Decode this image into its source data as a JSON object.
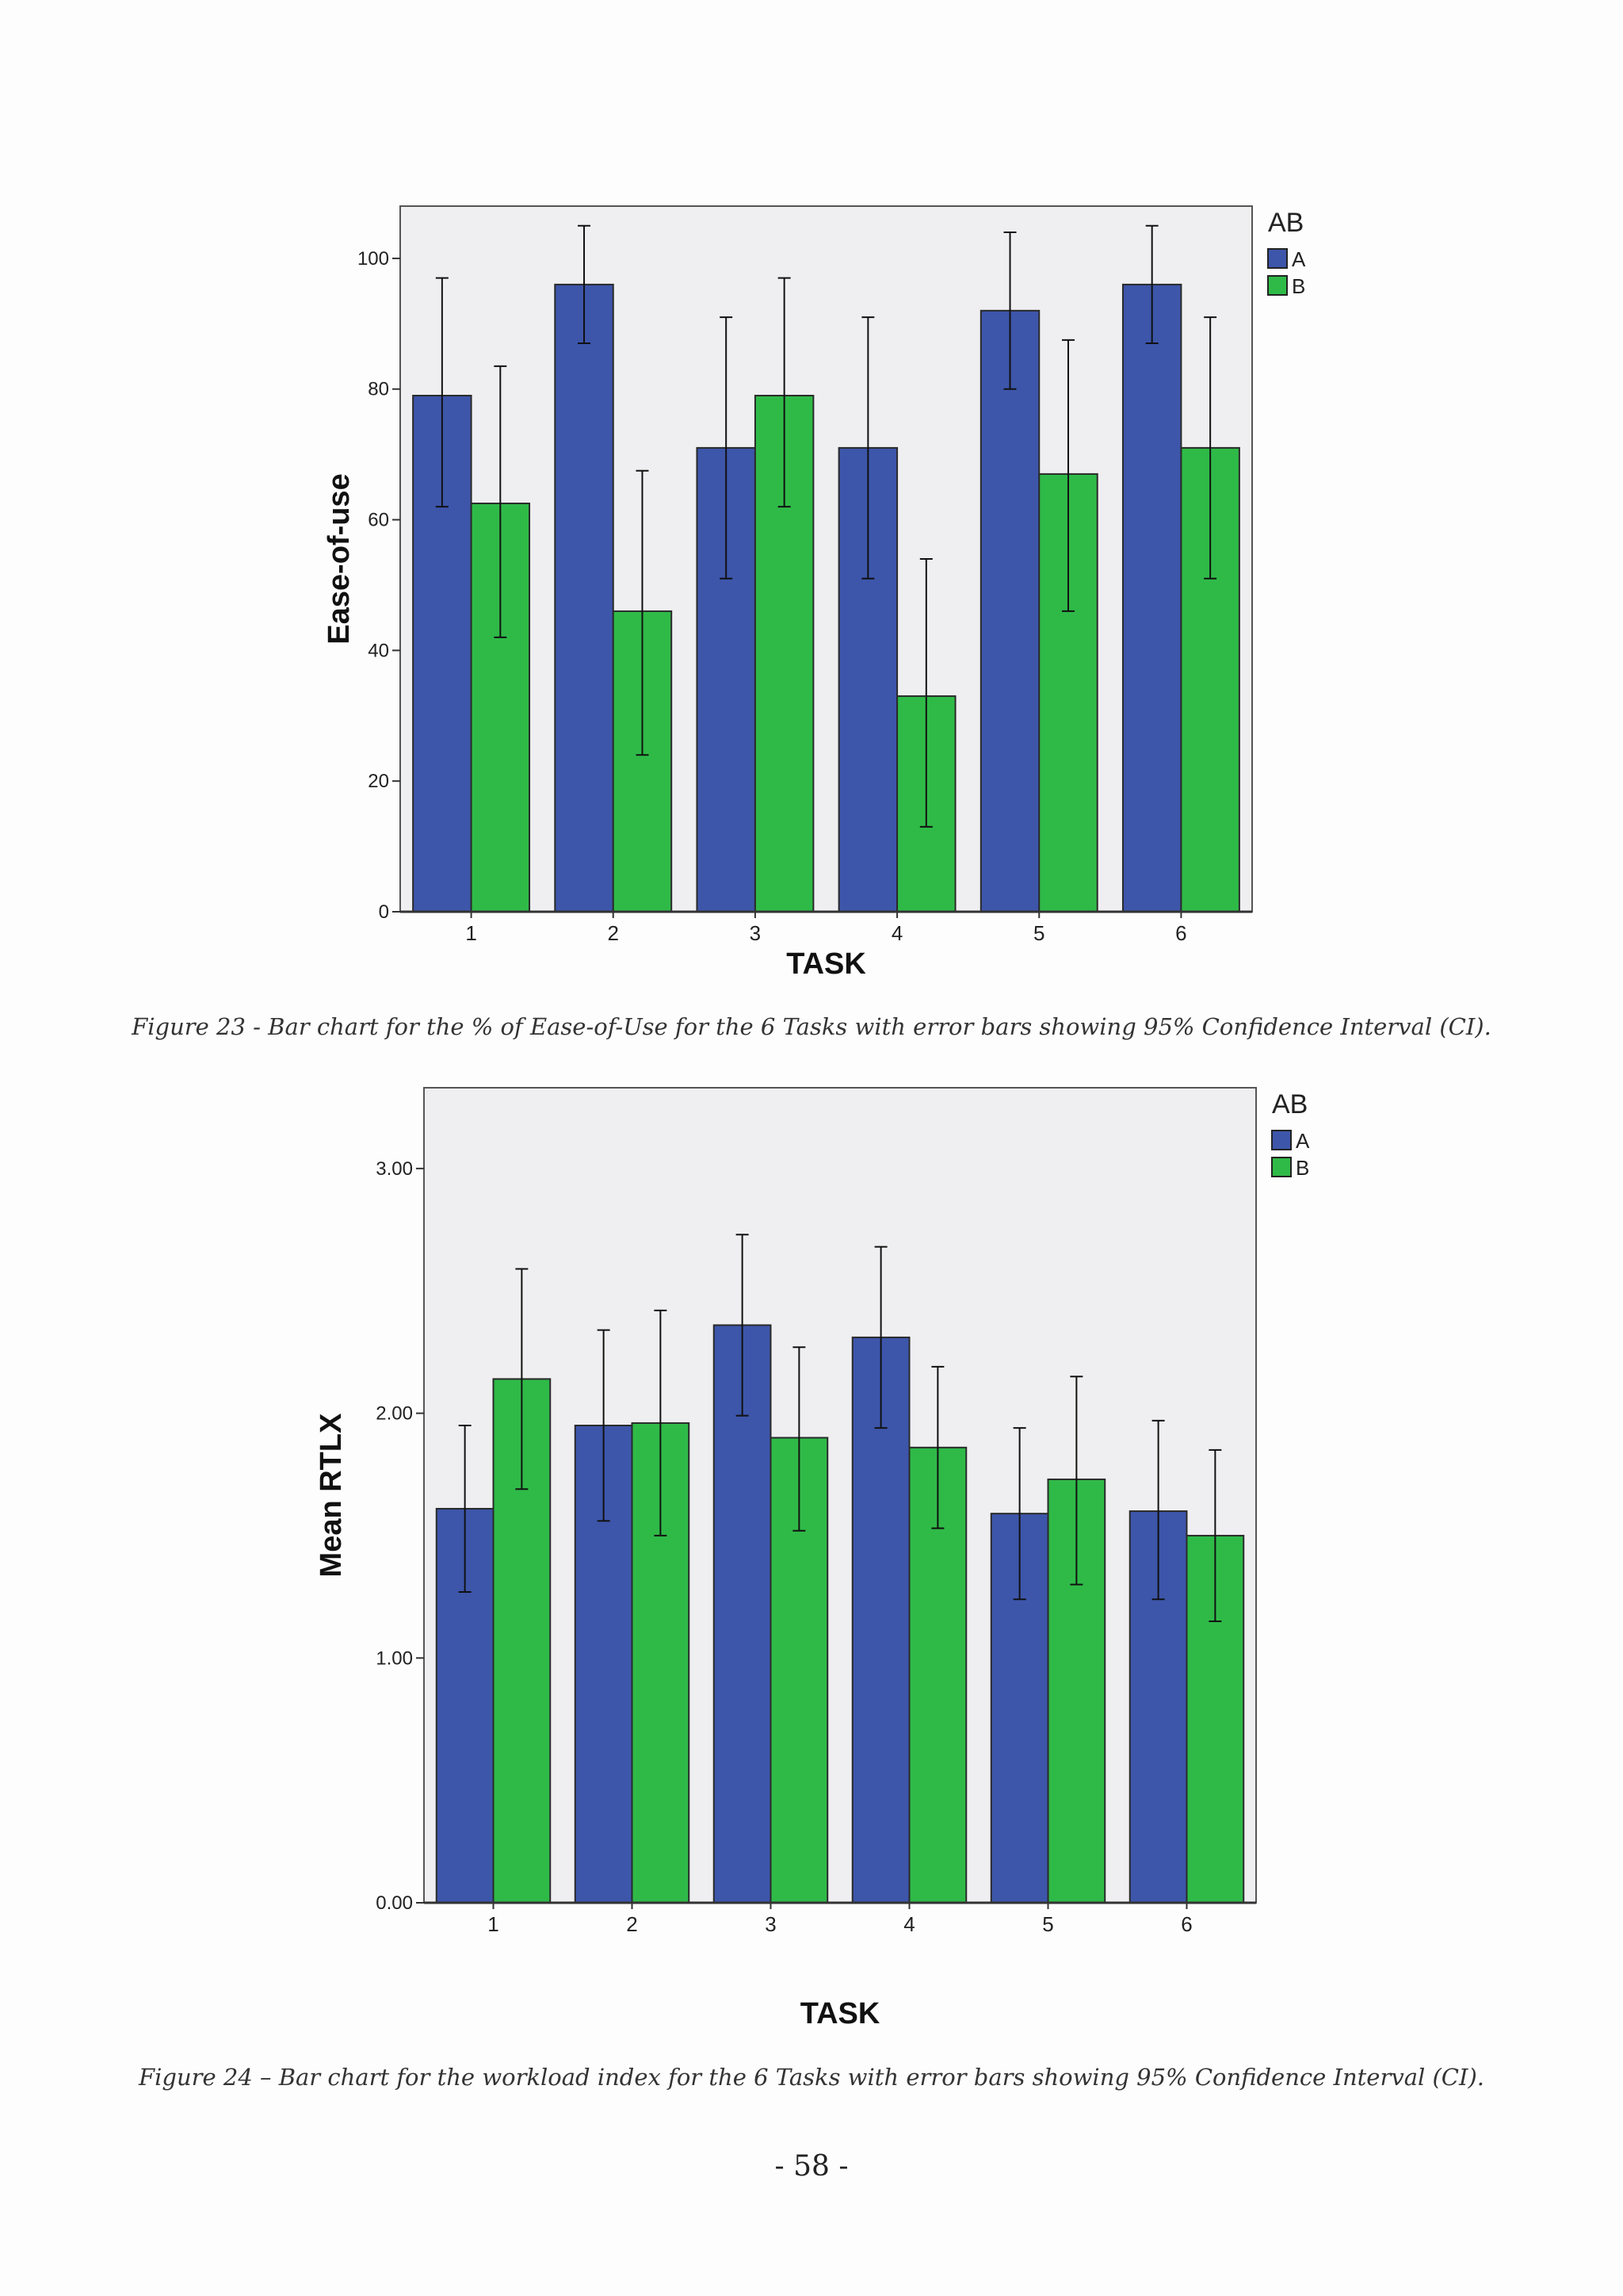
{
  "chart_data": [
    {
      "type": "bar",
      "categories": [
        "1",
        "2",
        "3",
        "4",
        "5",
        "6"
      ],
      "xlabel": "TASK",
      "ylabel": "Ease-of-use",
      "ylim": [
        0,
        108
      ],
      "yticks": [
        0,
        20,
        40,
        60,
        80,
        100
      ],
      "ytick_labels": [
        "0",
        "20",
        "40",
        "60",
        "80",
        "100"
      ],
      "error_bars": "95% CI",
      "legend": {
        "title": "AB",
        "position": "top-right-outside",
        "entries": [
          "A",
          "B"
        ]
      },
      "series": [
        {
          "name": "A",
          "color": "#3d56aa",
          "values": [
            79,
            96,
            71,
            71,
            92,
            96
          ],
          "ci_low": [
            62,
            87,
            51,
            51,
            80,
            87
          ],
          "ci_high": [
            97,
            105,
            91,
            91,
            104,
            105
          ]
        },
        {
          "name": "B",
          "color": "#2fba48",
          "values": [
            62.5,
            46,
            79,
            33,
            67,
            71
          ],
          "ci_low": [
            42,
            24,
            62,
            13,
            46,
            51
          ],
          "ci_high": [
            83.5,
            67.5,
            97,
            54,
            87.5,
            91
          ]
        }
      ]
    },
    {
      "type": "bar",
      "categories": [
        "1",
        "2",
        "3",
        "4",
        "5",
        "6"
      ],
      "xlabel": "TASK",
      "ylabel": "Mean RTLX",
      "ylim": [
        0,
        3.33
      ],
      "yticks": [
        0,
        1,
        2,
        3
      ],
      "ytick_labels": [
        "0.00",
        "1.00",
        "2.00",
        "3.00"
      ],
      "error_bars": "95% CI",
      "legend": {
        "title": "AB",
        "position": "top-right-outside",
        "entries": [
          "A",
          "B"
        ]
      },
      "series": [
        {
          "name": "A",
          "color": "#3d56aa",
          "values": [
            1.61,
            1.95,
            2.36,
            2.31,
            1.59,
            1.6
          ],
          "ci_low": [
            1.27,
            1.56,
            1.99,
            1.94,
            1.24,
            1.24
          ],
          "ci_high": [
            1.95,
            2.34,
            2.73,
            2.68,
            1.94,
            1.97
          ]
        },
        {
          "name": "B",
          "color": "#2fba48",
          "values": [
            2.14,
            1.96,
            1.9,
            1.86,
            1.73,
            1.5
          ],
          "ci_low": [
            1.69,
            1.5,
            1.52,
            1.53,
            1.3,
            1.15
          ],
          "ci_high": [
            2.59,
            2.42,
            2.27,
            2.19,
            2.15,
            1.85
          ]
        }
      ]
    }
  ],
  "captions": {
    "figure23": "Figure 23 - Bar chart for the % of Ease-of-Use for the 6 Tasks with error bars showing 95% Confidence Interval (CI).",
    "figure24": "Figure 24 – Bar chart for the workload index for the 6 Tasks with error bars showing 95% Confidence Interval (CI)."
  },
  "page_number": "- 58 -",
  "colors": {
    "plot_background": "#efeff1",
    "series_a": "#3d56aa",
    "series_b": "#2fba48"
  }
}
